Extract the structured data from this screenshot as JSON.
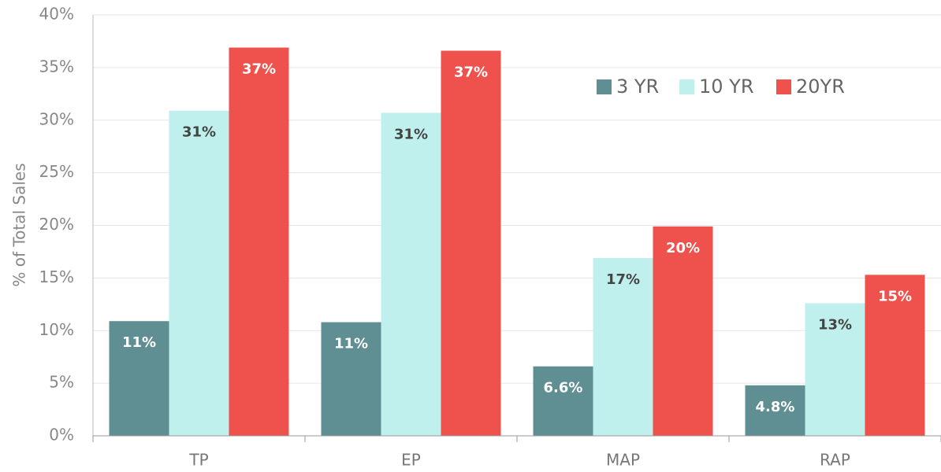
{
  "chart_data": {
    "type": "bar",
    "y_label": "% of Total Sales",
    "categories": [
      "TP",
      "EP",
      "MAP",
      "RAP"
    ],
    "series": [
      {
        "name": "3 YR",
        "color": "#5f8f93",
        "values": [
          10.9,
          10.8,
          6.6,
          4.8
        ],
        "value_labels": [
          "11%",
          "11%",
          "6.6%",
          "4.8%"
        ]
      },
      {
        "name": "10 YR",
        "color": "#bff0ee",
        "values": [
          30.9,
          30.7,
          16.9,
          12.6
        ],
        "value_labels": [
          "31%",
          "31%",
          "17%",
          "13%"
        ]
      },
      {
        "name": "20YR",
        "color": "#ef514c",
        "values": [
          36.9,
          36.6,
          19.9,
          15.3
        ],
        "value_labels": [
          "37%",
          "37%",
          "20%",
          "15%"
        ]
      }
    ],
    "ylim": [
      0,
      40
    ],
    "yticks": [
      {
        "value": 0,
        "label": "0%"
      },
      {
        "value": 5,
        "label": "5%"
      },
      {
        "value": 10,
        "label": "10%"
      },
      {
        "value": 15,
        "label": "15%"
      },
      {
        "value": 20,
        "label": "20%"
      },
      {
        "value": 25,
        "label": "25%"
      },
      {
        "value": 30,
        "label": "30%"
      },
      {
        "value": 35,
        "label": "35%"
      },
      {
        "value": 40,
        "label": "40%"
      }
    ],
    "grid": true,
    "legend": "top-right"
  }
}
